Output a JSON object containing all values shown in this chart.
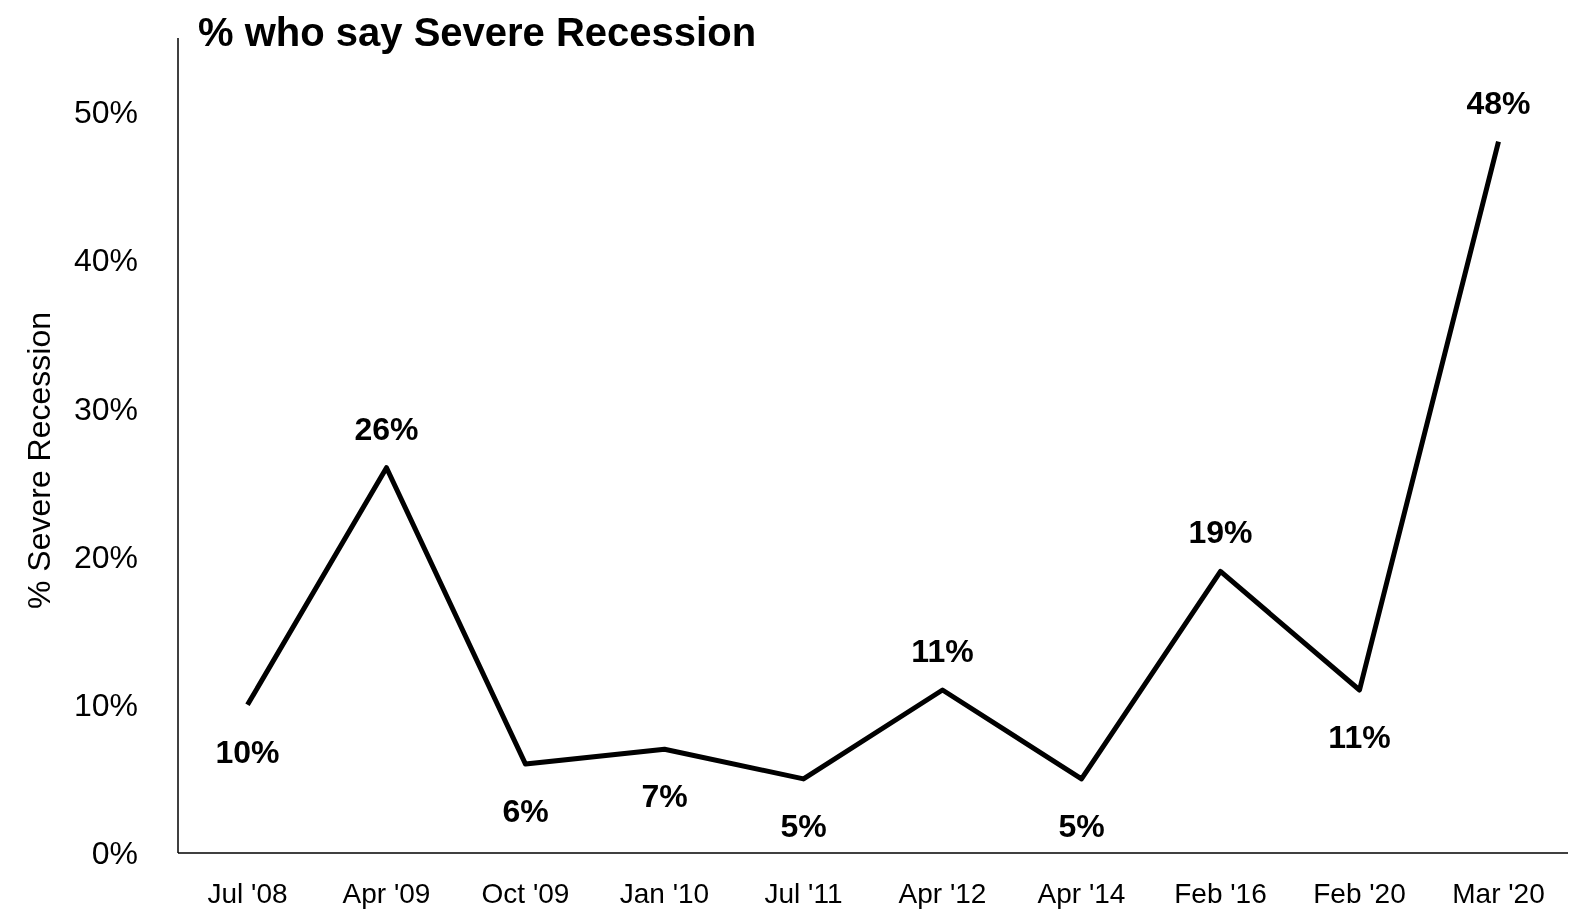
{
  "chart_data": {
    "type": "line",
    "title": "% who say Severe Recession",
    "ylabel": "% Severe Recession",
    "categories": [
      "Jul '08",
      "Apr '09",
      "Oct '09",
      "Jan '10",
      "Jul '11",
      "Apr '12",
      "Apr '14",
      "Feb '16",
      "Feb '20",
      "Mar '20"
    ],
    "series": [
      {
        "color": "#000000",
        "values": [
          10,
          26,
          6,
          7,
          5,
          11,
          5,
          19,
          11,
          48
        ],
        "value_labels": [
          "10%",
          "26%",
          "6%",
          "7%",
          "5%",
          "11%",
          "5%",
          "19%",
          "11%",
          "48%"
        ]
      }
    ],
    "ylim": [
      0,
      55
    ],
    "yticks": [
      {
        "value": 0,
        "label": "0%"
      },
      {
        "value": 10,
        "label": "10%"
      },
      {
        "value": 20,
        "label": "20%"
      },
      {
        "value": 30,
        "label": "30%"
      },
      {
        "value": 40,
        "label": "40%"
      },
      {
        "value": 50,
        "label": "50%"
      }
    ],
    "grid": false,
    "marker": "none",
    "line_style": "solid"
  }
}
